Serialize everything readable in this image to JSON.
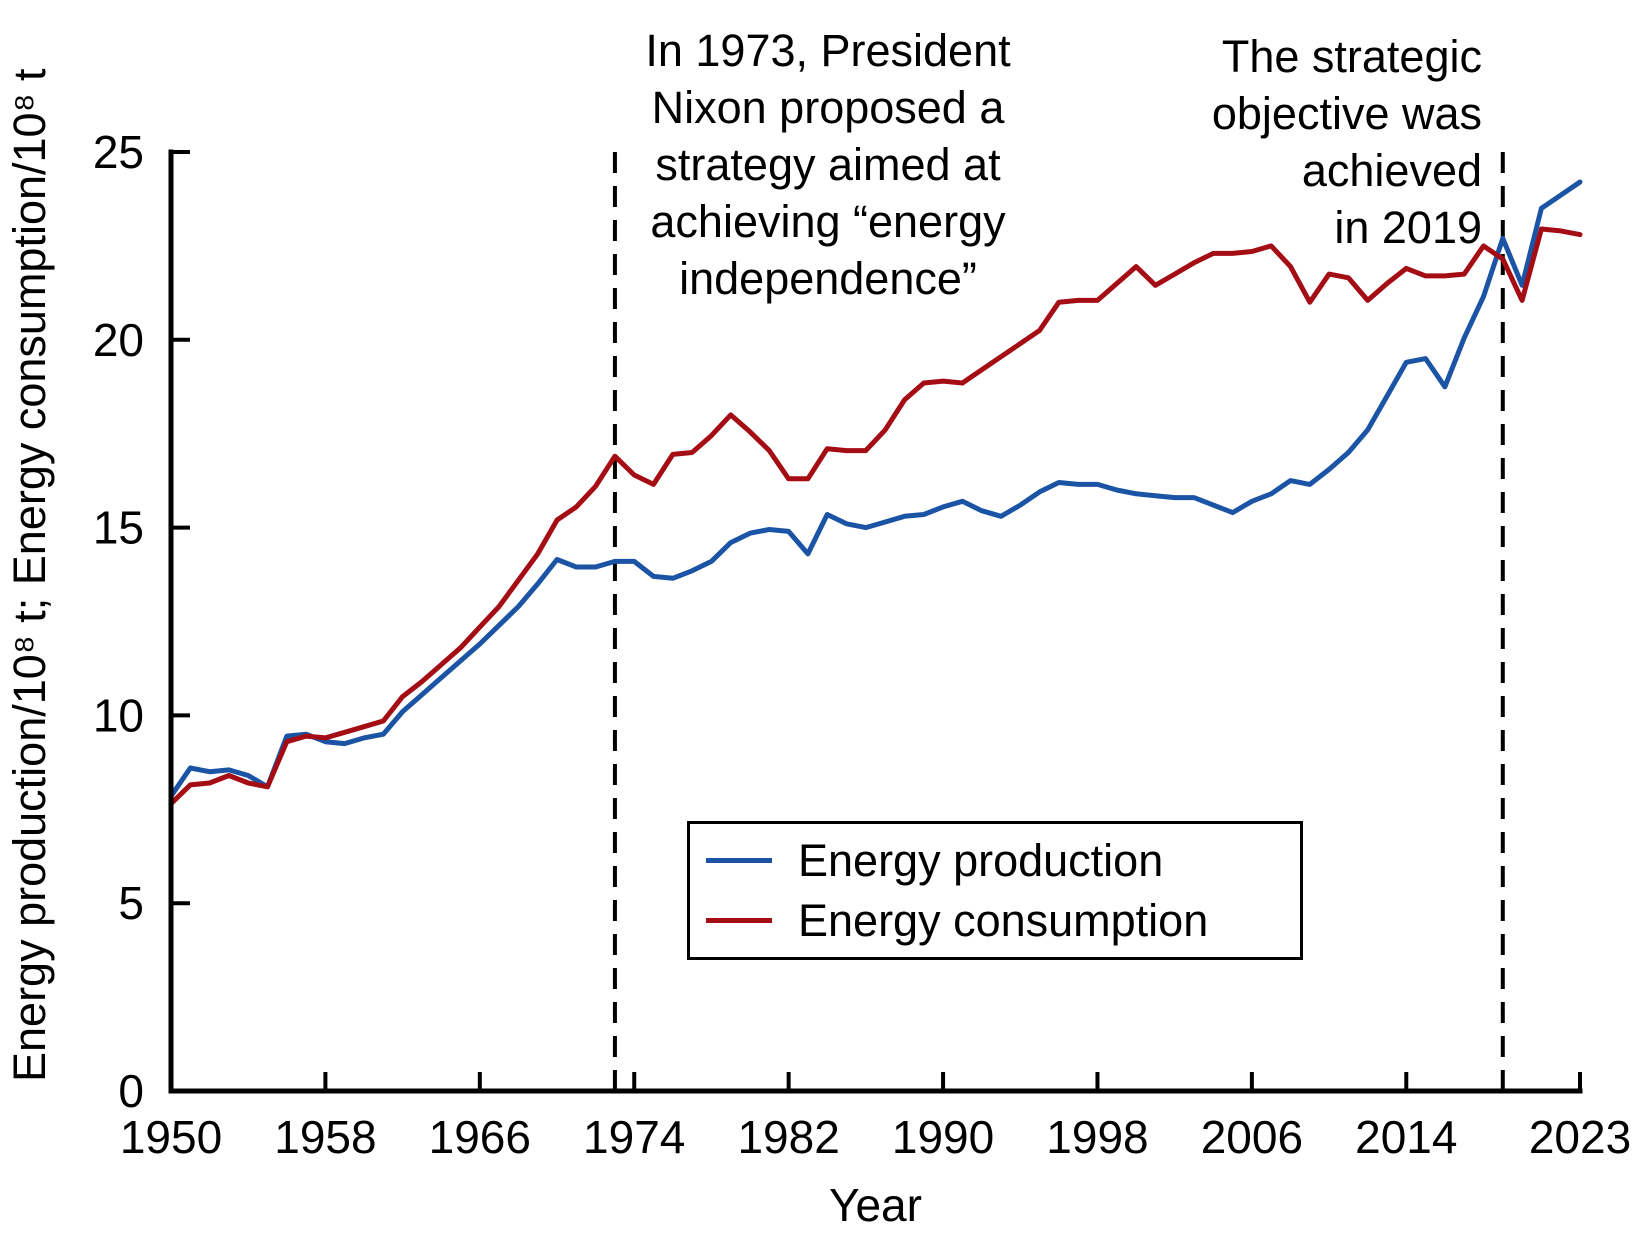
{
  "figure": {
    "xlabel": "Year",
    "ylabel": "Energy production/10⁸ t; Energy consumption/10⁸ t",
    "annotations": [
      {
        "id": "nixon",
        "text": "In 1973, President\nNixon proposed a\nstrategy aimed at\nachieving “energy\nindependence”",
        "align": "center",
        "at_year": 1973
      },
      {
        "id": "objective",
        "text": "The strategic\nobjective was\nachieved\nin 2019",
        "align": "right",
        "at_year": 2019
      }
    ]
  },
  "chart_data": {
    "type": "line",
    "title": "",
    "xlabel": "Year",
    "ylabel": "Energy production/10⁸ t; Energy consumption/10⁸ t",
    "xlim": [
      1950,
      2023
    ],
    "ylim": [
      0,
      25
    ],
    "x_ticks": [
      1950,
      1958,
      1966,
      1974,
      1982,
      1990,
      1998,
      2006,
      2014,
      2023
    ],
    "y_ticks": [
      0,
      5,
      10,
      15,
      20,
      25
    ],
    "grid": false,
    "legend_position": "lower center",
    "axis_color": "#000000",
    "vlines": [
      {
        "year": 1973,
        "style": "dashed",
        "color": "#000000"
      },
      {
        "year": 2019,
        "style": "dashed",
        "color": "#000000"
      }
    ],
    "years": [
      1950,
      1951,
      1952,
      1953,
      1954,
      1955,
      1956,
      1957,
      1958,
      1959,
      1960,
      1961,
      1962,
      1963,
      1964,
      1965,
      1966,
      1967,
      1968,
      1969,
      1970,
      1971,
      1972,
      1973,
      1974,
      1975,
      1976,
      1977,
      1978,
      1979,
      1980,
      1981,
      1982,
      1983,
      1984,
      1985,
      1986,
      1987,
      1988,
      1989,
      1990,
      1991,
      1992,
      1993,
      1994,
      1995,
      1996,
      1997,
      1998,
      1999,
      2000,
      2001,
      2002,
      2003,
      2004,
      2005,
      2006,
      2007,
      2008,
      2009,
      2010,
      2011,
      2012,
      2013,
      2014,
      2015,
      2016,
      2017,
      2018,
      2019,
      2020,
      2021,
      2022,
      2023
    ],
    "series": [
      {
        "name": "Energy production",
        "color": "#1c54a5",
        "values": [
          7.85,
          8.6,
          8.5,
          8.55,
          8.4,
          8.1,
          9.45,
          9.5,
          9.3,
          9.25,
          9.4,
          9.5,
          10.1,
          10.55,
          11.0,
          11.45,
          11.9,
          12.4,
          12.9,
          13.5,
          14.15,
          13.95,
          13.95,
          14.1,
          14.1,
          13.7,
          13.65,
          13.85,
          14.1,
          14.6,
          14.85,
          14.95,
          14.9,
          14.3,
          15.35,
          15.1,
          15.0,
          15.15,
          15.3,
          15.35,
          15.55,
          15.7,
          15.45,
          15.3,
          15.6,
          15.95,
          16.2,
          16.15,
          16.15,
          16.0,
          15.9,
          15.85,
          15.8,
          15.8,
          15.6,
          15.4,
          15.7,
          15.9,
          16.25,
          16.15,
          16.55,
          17.0,
          17.6,
          18.5,
          19.4,
          19.5,
          18.75,
          20.05,
          21.15,
          22.7,
          21.45,
          23.5,
          23.85,
          24.2
        ]
      },
      {
        "name": "Energy consumption",
        "color": "#a50d15",
        "values": [
          7.65,
          8.15,
          8.2,
          8.4,
          8.2,
          8.1,
          9.3,
          9.45,
          9.4,
          9.55,
          9.7,
          9.85,
          10.5,
          10.9,
          11.35,
          11.8,
          12.35,
          12.9,
          13.6,
          14.3,
          15.2,
          15.55,
          16.1,
          16.9,
          16.4,
          16.15,
          16.95,
          17.0,
          17.45,
          18.0,
          17.55,
          17.05,
          16.3,
          16.3,
          17.1,
          17.05,
          17.05,
          17.6,
          18.4,
          18.85,
          18.9,
          18.85,
          19.2,
          19.55,
          19.9,
          20.25,
          21.0,
          21.05,
          21.05,
          21.5,
          21.95,
          21.45,
          21.75,
          22.05,
          22.3,
          22.3,
          22.35,
          22.5,
          21.95,
          21.0,
          21.75,
          21.65,
          21.05,
          21.5,
          21.9,
          21.7,
          21.7,
          21.75,
          22.5,
          22.15,
          21.05,
          22.95,
          22.9,
          22.8
        ]
      }
    ]
  }
}
